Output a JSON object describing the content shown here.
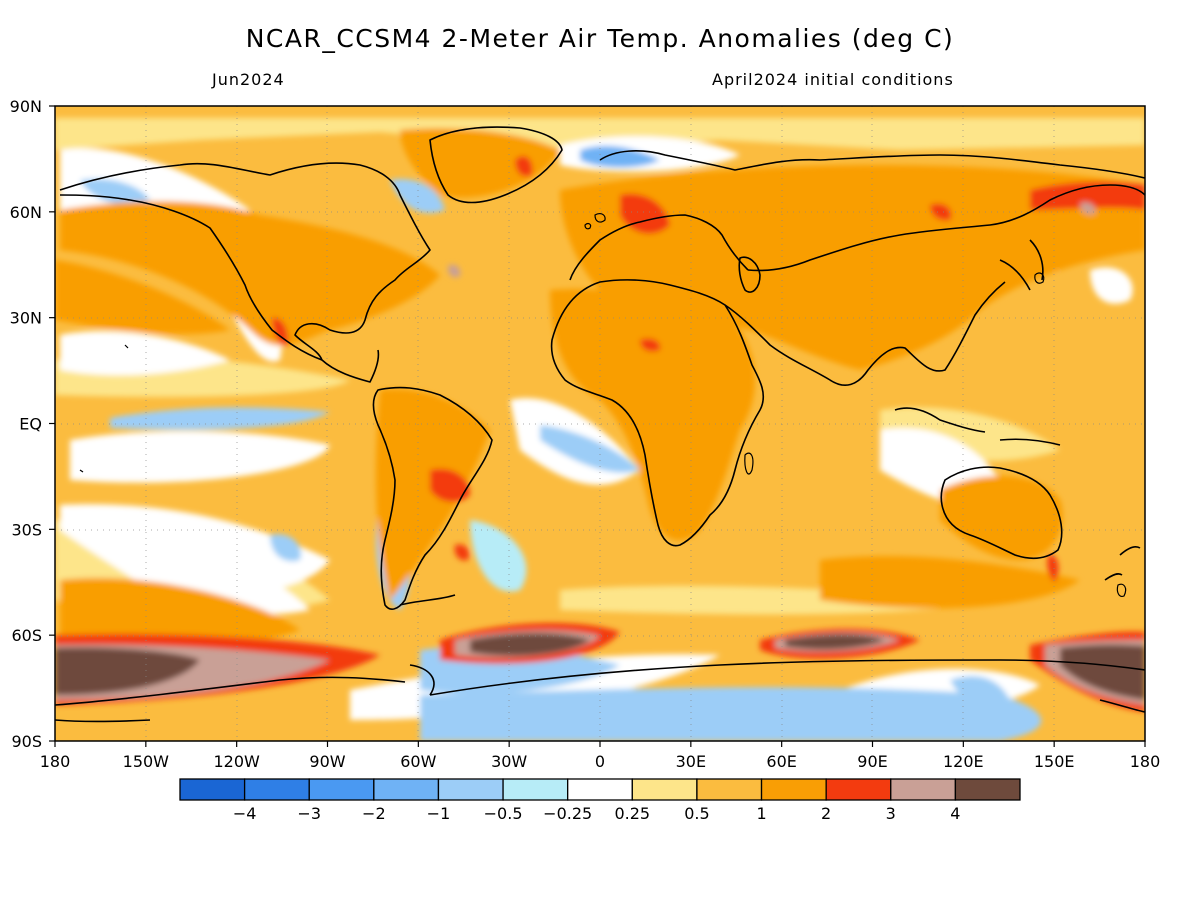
{
  "header": {
    "title": "NCAR_CCSM4 2-Meter Air Temp. Anomalies (deg C)",
    "valid_month": "Jun2024",
    "initial_conditions": "April2024 initial conditions"
  },
  "map": {
    "lat_labels": [
      "90N",
      "60N",
      "30N",
      "EQ",
      "30S",
      "60S",
      "90S"
    ],
    "lon_labels": [
      "180",
      "150W",
      "120W",
      "90W",
      "60W",
      "30W",
      "0",
      "30E",
      "60E",
      "90E",
      "120E",
      "150E",
      "180"
    ],
    "lat_range": [
      -90,
      90
    ],
    "lon_range": [
      -180,
      180
    ],
    "projection": "cylindrical equidistant",
    "grid": true
  },
  "colorbar": {
    "labels": [
      "-4",
      "-3",
      "-2",
      "-1",
      "-0.5",
      "-0.25",
      "0.25",
      "0.5",
      "1",
      "2",
      "3",
      "4"
    ],
    "colors": [
      "#1a66d4",
      "#2f7fe6",
      "#4a99f2",
      "#6fb2f5",
      "#9ccdf7",
      "#b7ecf7",
      "#ffffff",
      "#fde58a",
      "#fbbc3f",
      "#f99e05",
      "#f33b0f",
      "#c9a096",
      "#6e4a3c"
    ]
  },
  "map_colors": {
    "ocean_base": "#fbbc3f",
    "land_warm": "#f99e05",
    "hot": "#f33b0f",
    "extreme": "#6e4a3c",
    "near_zero": "#ffffff",
    "light_warm": "#fde58a",
    "cool": "#9ccdf7",
    "coastline": "#000000"
  }
}
